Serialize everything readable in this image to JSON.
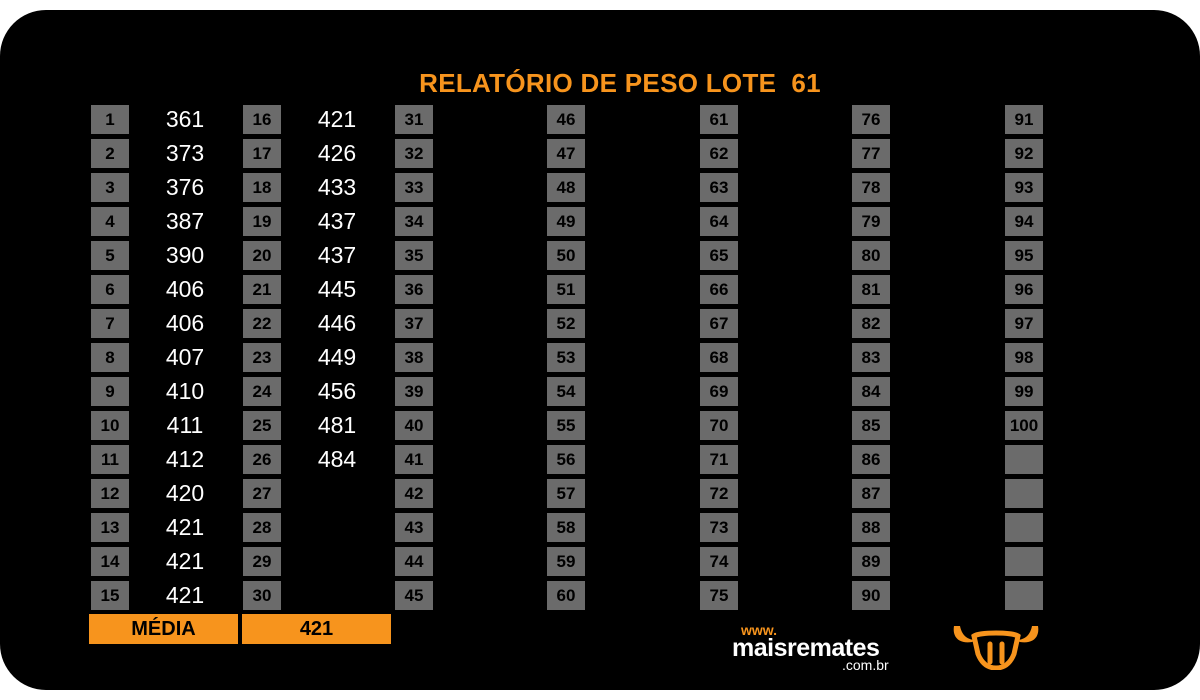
{
  "report": {
    "title": "RELATÓRIO DE PESO LOTE  61",
    "average_label": "MÉDIA",
    "average_value": "421"
  },
  "weights": [
    "361",
    "373",
    "376",
    "387",
    "390",
    "406",
    "406",
    "407",
    "410",
    "411",
    "412",
    "420",
    "421",
    "421",
    "421",
    "421",
    "426",
    "433",
    "437",
    "437",
    "445",
    "446",
    "449",
    "456",
    "481",
    "484"
  ],
  "slots": [
    "1",
    "2",
    "3",
    "4",
    "5",
    "6",
    "7",
    "8",
    "9",
    "10",
    "11",
    "12",
    "13",
    "14",
    "15",
    "16",
    "17",
    "18",
    "19",
    "20",
    "21",
    "22",
    "23",
    "24",
    "25",
    "26",
    "27",
    "28",
    "29",
    "30",
    "31",
    "32",
    "33",
    "34",
    "35",
    "36",
    "37",
    "38",
    "39",
    "40",
    "41",
    "42",
    "43",
    "44",
    "45",
    "46",
    "47",
    "48",
    "49",
    "50",
    "51",
    "52",
    "53",
    "54",
    "55",
    "56",
    "57",
    "58",
    "59",
    "60",
    "61",
    "62",
    "63",
    "64",
    "65",
    "66",
    "67",
    "68",
    "69",
    "70",
    "71",
    "72",
    "73",
    "74",
    "75",
    "76",
    "77",
    "78",
    "79",
    "80",
    "81",
    "82",
    "83",
    "84",
    "85",
    "86",
    "87",
    "88",
    "89",
    "90",
    "91",
    "92",
    "93",
    "94",
    "95",
    "96",
    "97",
    "98",
    "99",
    "100"
  ],
  "brand": {
    "www": "www.",
    "name": "maisremates",
    "domain": ".com.br",
    "logo_icon": "bull-head-icon",
    "accent_color": "#f7941d"
  }
}
